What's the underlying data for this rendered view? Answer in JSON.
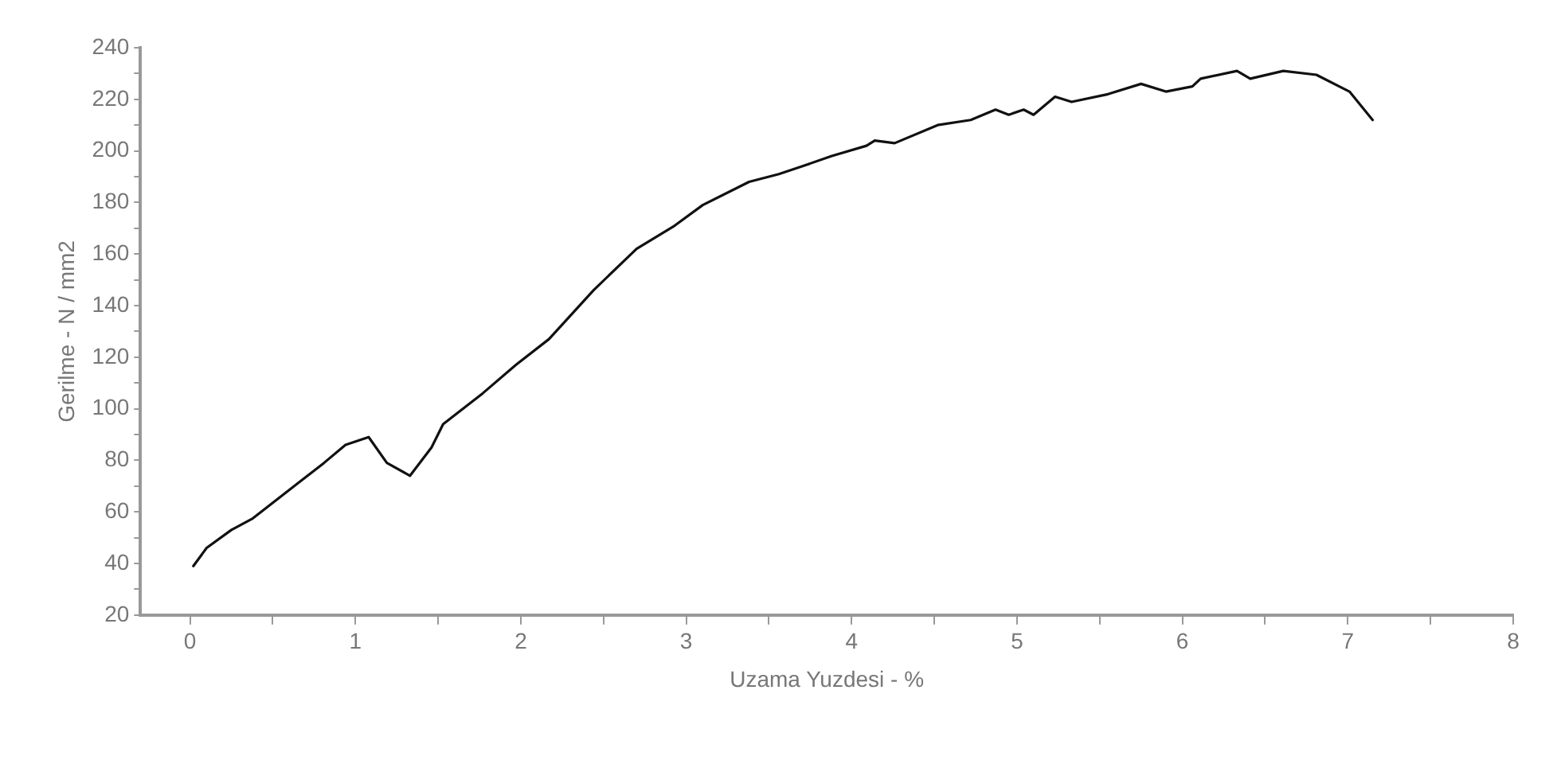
{
  "chart_data": {
    "type": "line",
    "xlabel": "Uzama Yuzdesi - %",
    "ylabel": "Gerilme - N / mm2",
    "xlim": [
      -0.3,
      8
    ],
    "ylim": [
      20,
      240
    ],
    "xticks": [
      0,
      {
        "value": 0.5,
        "label": null
      },
      1,
      {
        "value": 1.5,
        "label": null
      },
      2,
      {
        "value": 2.5,
        "label": null
      },
      3,
      {
        "value": 3.5,
        "label": null
      },
      4,
      {
        "value": 4.5,
        "label": null
      },
      5,
      {
        "value": 5.5,
        "label": null
      },
      6,
      {
        "value": 6.5,
        "label": null
      },
      7,
      {
        "value": 7.5,
        "label": null
      },
      8
    ],
    "yticks": [
      20,
      {
        "value": 30,
        "label": null
      },
      40,
      {
        "value": 50,
        "label": null
      },
      60,
      {
        "value": 70,
        "label": null
      },
      80,
      {
        "value": 90,
        "label": null
      },
      100,
      {
        "value": 110,
        "label": null
      },
      120,
      {
        "value": 130,
        "label": null
      },
      140,
      {
        "value": 150,
        "label": null
      },
      160,
      {
        "value": 170,
        "label": null
      },
      180,
      {
        "value": 190,
        "label": null
      },
      200,
      {
        "value": 210,
        "label": null
      },
      220,
      {
        "value": 230,
        "label": null
      },
      240
    ],
    "grid": false,
    "legend": false,
    "marker": "none",
    "line_style": "solid",
    "series": [
      {
        "color": "#111111",
        "x": [
          0.02,
          0.1,
          0.25,
          0.38,
          0.65,
          0.81,
          0.94,
          1.08,
          1.19,
          1.33,
          1.46,
          1.53,
          1.77,
          1.97,
          2.17,
          2.44,
          2.7,
          2.93,
          3.1,
          3.38,
          3.56,
          3.7,
          3.88,
          4.09,
          4.14,
          4.26,
          4.52,
          4.72,
          4.87,
          4.95,
          5.04,
          5.1,
          5.23,
          5.33,
          5.55,
          5.75,
          5.9,
          6.06,
          6.11,
          6.33,
          6.41,
          6.61,
          6.81,
          7.01,
          7.15
        ],
        "values": [
          39,
          46,
          53,
          57.5,
          71,
          79,
          86,
          89,
          79,
          74,
          85,
          94,
          106,
          117,
          127,
          146,
          162,
          171,
          179,
          188,
          191,
          194,
          198,
          202,
          204,
          203,
          210,
          212,
          216,
          214,
          216,
          214,
          221,
          219,
          222,
          226,
          223,
          225,
          228,
          231,
          228,
          231,
          229.5,
          223,
          212
        ]
      }
    ]
  }
}
